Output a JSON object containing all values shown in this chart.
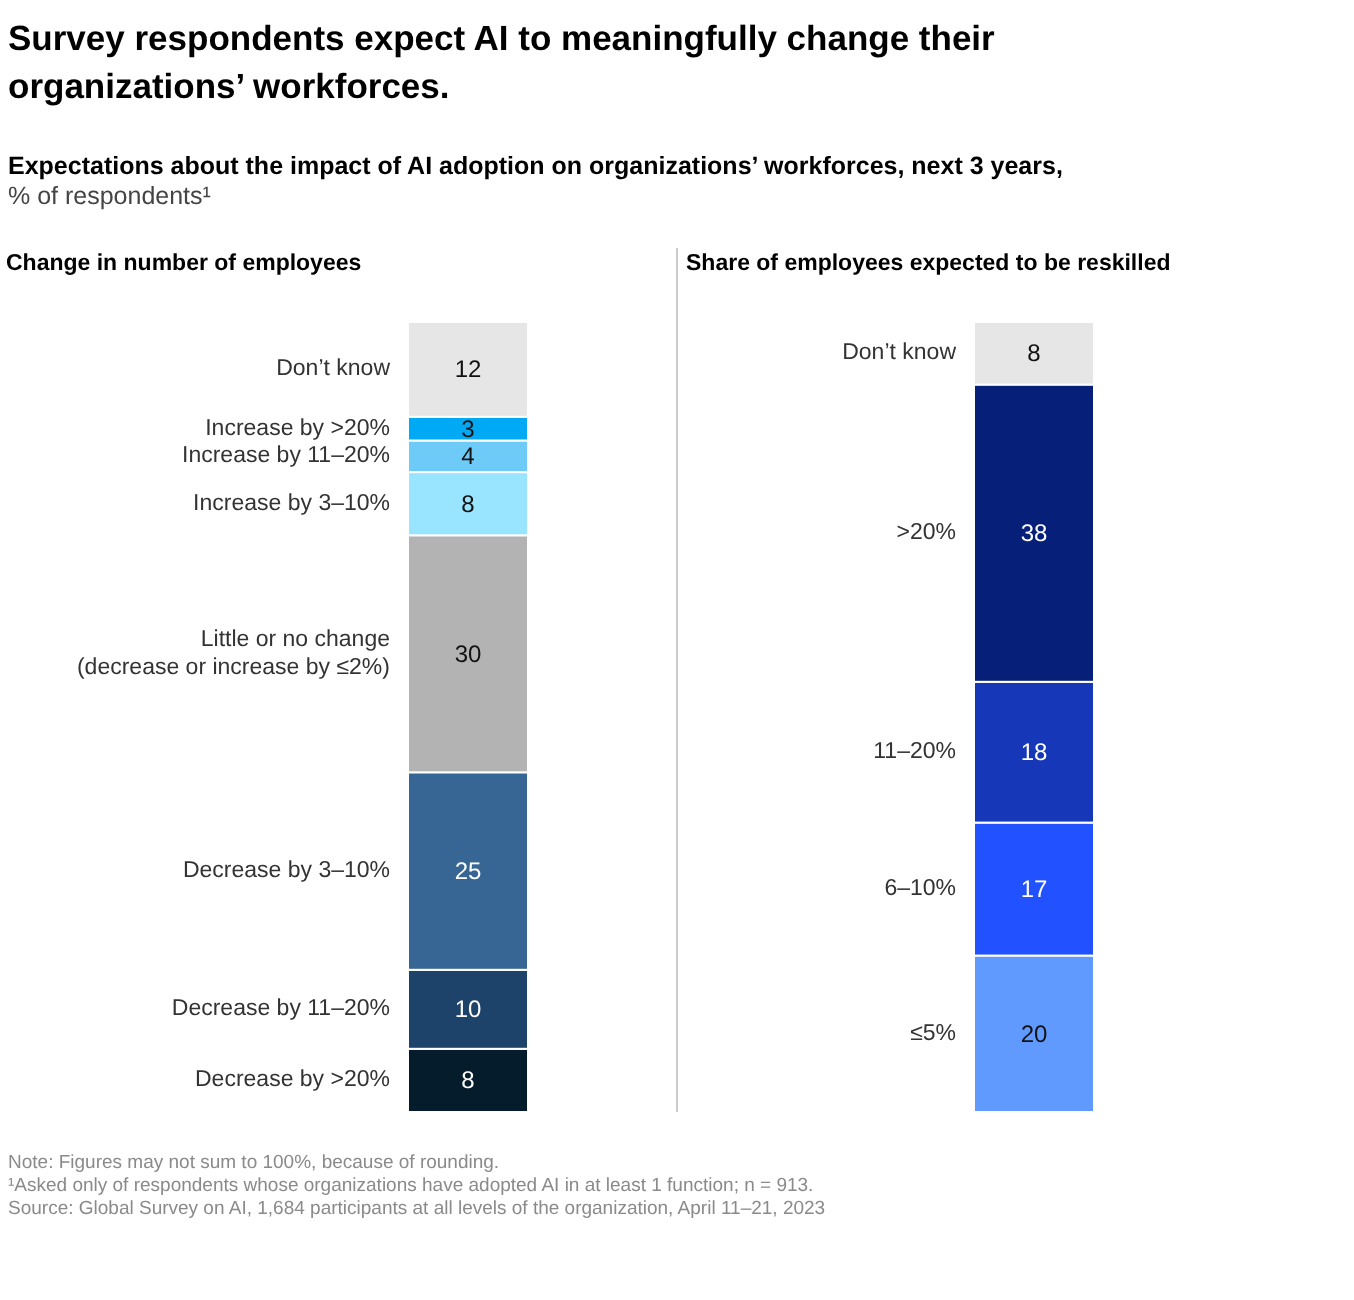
{
  "chart_data": [
    {
      "type": "other",
      "title": "Survey respondents expect AI to meaningfully change their organizations’ workforces.",
      "subtitle": "Expectations about the impact of AI adoption on organizations’ workforces, next 3 years,",
      "ylabel": "% of respondents¹",
      "annotations": [
        "Note: Figures may not sum to 100%, because of rounding.",
        "¹Asked only of respondents whose organizations have adopted AI in at least 1 function; n = 913.",
        "Source: Global Survey on AI, 1,684 participants at all levels of the organization, April 11–21, 2023"
      ]
    },
    {
      "type": "bar",
      "stacked": true,
      "data_labels": true,
      "title": "Change in number of employees",
      "categories": [
        null
      ],
      "series": [
        {
          "name": "Decrease by >20%",
          "color": "#051c2c",
          "values": [
            8
          ]
        },
        {
          "name": "Decrease by 11–20%",
          "color": "#1e436b",
          "values": [
            10
          ]
        },
        {
          "name": "Decrease by 3–10%",
          "color": "#376694",
          "values": [
            25
          ]
        },
        {
          "name": "Little or no change\n(decrease or increase by ≤2%)",
          "color": "#b3b3b3",
          "values": [
            30
          ]
        },
        {
          "name": "Increase by 3–10%",
          "color": "#99e4ff",
          "values": [
            8
          ]
        },
        {
          "name": "Increase by 11–20%",
          "color": "#6ecbf7",
          "values": [
            4
          ]
        },
        {
          "name": "Increase by >20%",
          "color": "#00a9f4",
          "values": [
            3
          ]
        },
        {
          "name": "Don’t know",
          "color": "#e6e6e6",
          "values": [
            12
          ]
        }
      ]
    },
    {
      "type": "bar",
      "stacked": true,
      "data_labels": true,
      "title": "Share of employees expected to be reskilled",
      "categories": [
        null
      ],
      "series": [
        {
          "name": "≤5%",
          "color": "#609aff",
          "values": [
            20
          ]
        },
        {
          "name": "6–10%",
          "color": "#2251ff",
          "values": [
            17
          ]
        },
        {
          "name": "11–20%",
          "color": "#1638b8",
          "values": [
            18
          ]
        },
        {
          "name": ">20%",
          "color": "#061f79",
          "values": [
            38
          ]
        },
        {
          "name": "Don’t know",
          "color": "#e6e6e6",
          "values": [
            8
          ]
        }
      ]
    }
  ]
}
